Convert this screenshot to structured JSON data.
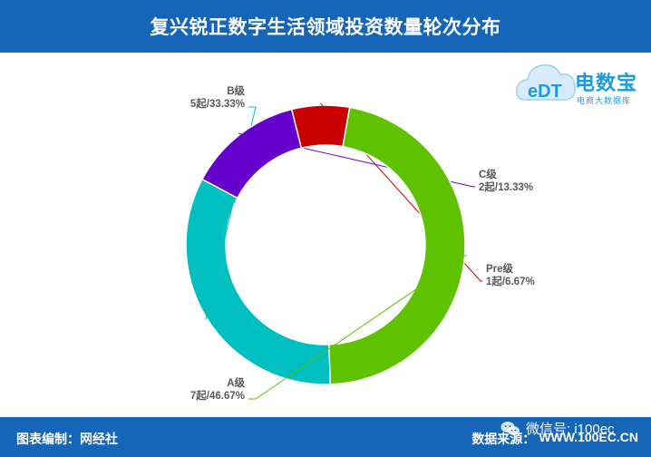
{
  "header": {
    "title": "复兴锐正数字生活领域投资数量轮次分布"
  },
  "logo": {
    "name": "电数宝",
    "tagline": "电商大数据库",
    "mark": "eDT"
  },
  "footer": {
    "left": "图表编制：网经社",
    "source_label": "数据来源：",
    "source_url": "WWW.100EC.CN",
    "wechat": "微信号: i100ec"
  },
  "colors": {
    "bar": "#1565b8",
    "logo": "#1a9be0",
    "label": "#595959",
    "leader": "#595959"
  },
  "icons": {
    "wechat": "wechat-icon",
    "logo": "cloud-logo-icon"
  },
  "chart_data": {
    "type": "pie",
    "donut": true,
    "title": "复兴锐正数字生活领域投资数量轮次分布",
    "series": [
      {
        "name": "B级",
        "value": 5,
        "percent": "33.33%",
        "color": "#00bfc0",
        "label": "5起/33.33%"
      },
      {
        "name": "C级",
        "value": 2,
        "percent": "13.33%",
        "color": "#6600cc",
        "label": "2起/13.33%"
      },
      {
        "name": "Pre级",
        "value": 1,
        "percent": "6.67%",
        "color": "#c80000",
        "label": "1起/6.67%"
      },
      {
        "name": "A级",
        "value": 7,
        "percent": "46.67%",
        "color": "#5fc200",
        "label": "7起/46.67%"
      }
    ],
    "legend": "none"
  }
}
